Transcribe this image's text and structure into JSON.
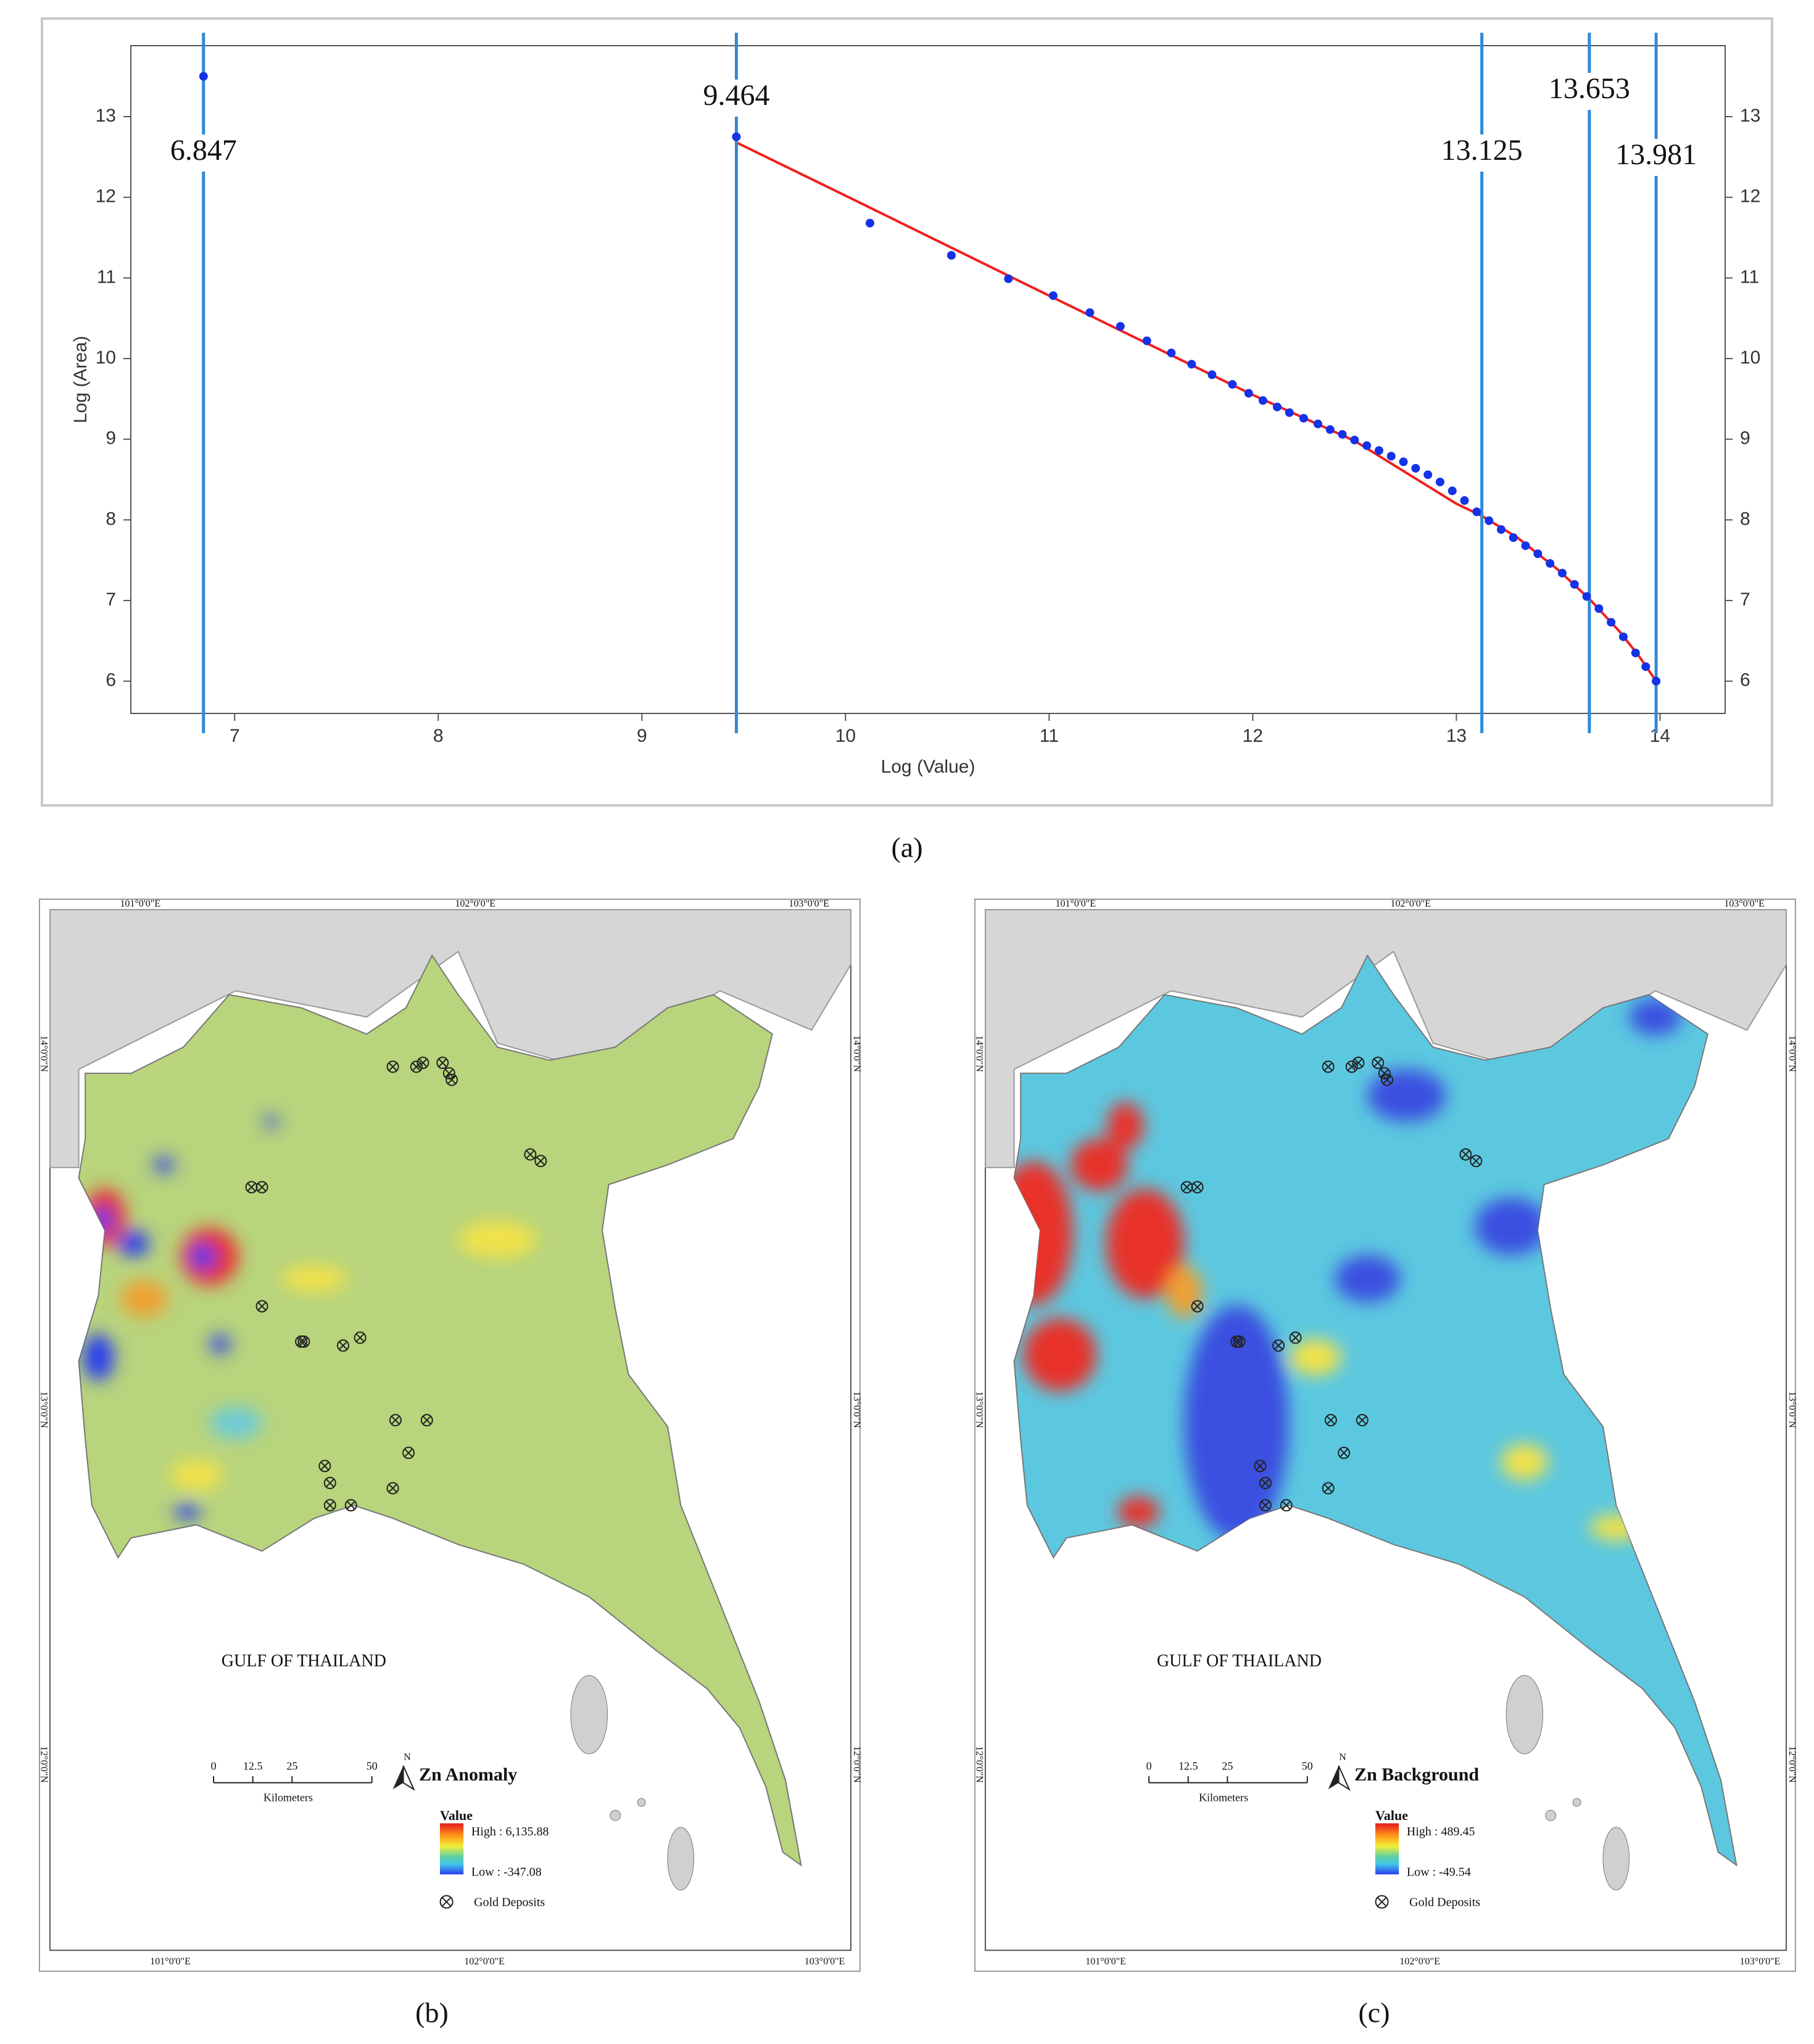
{
  "chart_data": {
    "type": "scatter",
    "x_label": "Log (Value)",
    "y_label": "Log (Area)",
    "xlim": [
      6.49,
      14.32
    ],
    "ylim": [
      5.6,
      13.88
    ],
    "xticks": [
      7,
      8,
      9,
      10,
      11,
      12,
      13,
      14
    ],
    "yticks": [
      6,
      7,
      8,
      9,
      10,
      11,
      12,
      13
    ],
    "color": "#1432e6",
    "x": [
      6.847,
      9.464,
      10.12,
      10.52,
      10.8,
      11.02,
      11.2,
      11.35,
      11.48,
      11.6,
      11.7,
      11.8,
      11.9,
      11.98,
      12.05,
      12.12,
      12.18,
      12.25,
      12.32,
      12.38,
      12.44,
      12.5,
      12.56,
      12.62,
      12.68,
      12.74,
      12.8,
      12.86,
      12.92,
      12.98,
      13.04,
      13.1,
      13.16,
      13.22,
      13.28,
      13.34,
      13.4,
      13.46,
      13.52,
      13.58,
      13.64,
      13.7,
      13.76,
      13.82,
      13.88,
      13.93,
      13.981
    ],
    "values": [
      13.5,
      12.75,
      11.68,
      11.28,
      10.99,
      10.78,
      10.57,
      10.4,
      10.22,
      10.07,
      9.93,
      9.8,
      9.68,
      9.57,
      9.48,
      9.4,
      9.33,
      9.26,
      9.19,
      9.12,
      9.06,
      8.99,
      8.92,
      8.86,
      8.79,
      8.72,
      8.64,
      8.56,
      8.47,
      8.36,
      8.24,
      8.1,
      7.99,
      7.88,
      7.78,
      7.68,
      7.58,
      7.46,
      7.34,
      7.2,
      7.05,
      6.9,
      6.73,
      6.55,
      6.35,
      6.18,
      6.0
    ],
    "fit": {
      "color": "#f02020",
      "x": [
        9.464,
        10,
        11,
        12,
        12.5,
        13,
        13.125,
        13.3,
        13.5,
        13.653,
        13.8,
        13.9,
        13.981
      ],
      "values": [
        12.68,
        12.02,
        10.78,
        9.55,
        8.98,
        8.2,
        8.05,
        7.78,
        7.38,
        7.02,
        6.62,
        6.3,
        6.0
      ]
    },
    "vlines": [
      6.847,
      9.464,
      13.125,
      13.653,
      13.981
    ],
    "vline_color": "#2f8ad8"
  },
  "captions": [
    "(a)",
    "(b)",
    "(c)"
  ],
  "maps": [
    {
      "title": "Zn Anomaly",
      "legend_label": "Value",
      "high": "High : 6,135.88",
      "low": "Low : -347.08",
      "deposits_label": "Gold Deposits",
      "sea_label": "GULF OF THAILAND",
      "scale_labels": [
        "0",
        "12.5",
        "25",
        "50"
      ],
      "scale_unit": "Kilometers",
      "north": "N",
      "lon_labels": [
        "101°0'0\"E",
        "102°0'0\"E",
        "103°0'0\"E"
      ],
      "lat_labels": [
        "14°0'0\"N",
        "13°0'0\"N",
        "12°0'0\"N"
      ]
    },
    {
      "title": "Zn Background",
      "legend_label": "Value",
      "high": "High : 489.45",
      "low": "Low : -49.54",
      "deposits_label": "Gold Deposits",
      "sea_label": "GULF OF THAILAND",
      "scale_labels": [
        "0",
        "12.5",
        "25",
        "50"
      ],
      "scale_unit": "Kilometers",
      "north": "N",
      "lon_labels": [
        "101°0'0\"E",
        "102°0'0\"E",
        "103°0'0\"E"
      ],
      "lat_labels": [
        "14°0'0\"N",
        "13°0'0\"N",
        "12°0'0\"N"
      ]
    }
  ]
}
